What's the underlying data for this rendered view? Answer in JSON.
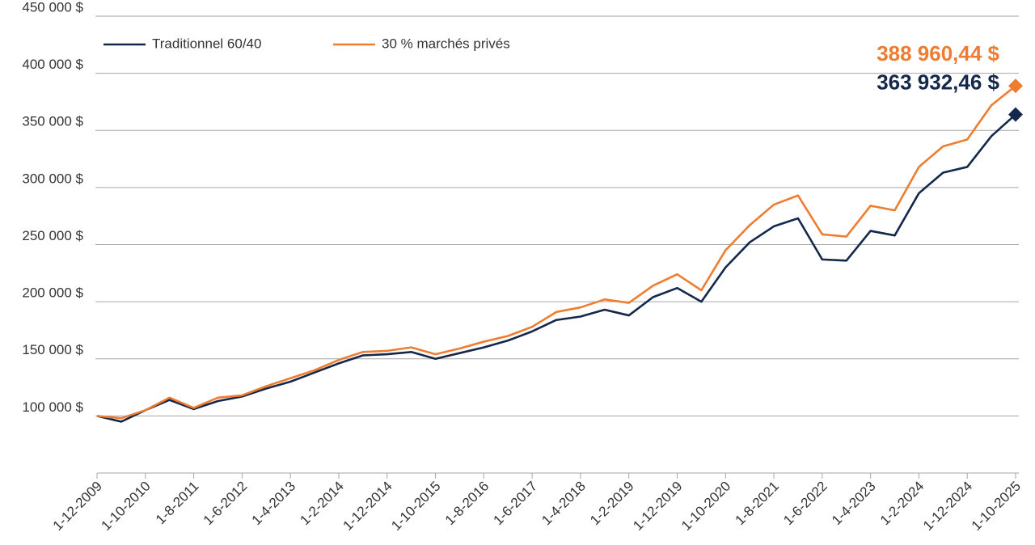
{
  "chart_data": {
    "type": "line",
    "categories": [
      "1-12-2009",
      null,
      "1-10-2010",
      null,
      "1-8-2011",
      null,
      "1-6-2012",
      null,
      "1-4-2013",
      null,
      "1-2-2014",
      null,
      "1-12-2014",
      null,
      "1-10-2015",
      null,
      "1-8-2016",
      null,
      "1-6-2017",
      null,
      "1-4-2018",
      null,
      "1-2-2019",
      null,
      "1-12-2019",
      null,
      "1-10-2020",
      null,
      "1-8-2021",
      null,
      "1-6-2022",
      null,
      "1-4-2023",
      null,
      "1-2-2024",
      null,
      "1-12-2024",
      null,
      "1-10-2025"
    ],
    "series": [
      {
        "name": "Traditionnel 60/40",
        "color": "#14284b",
        "values": [
          100000,
          95000,
          105000,
          114000,
          106000,
          113000,
          117000,
          124000,
          130000,
          138000,
          146000,
          153000,
          154000,
          156000,
          150000,
          155000,
          160000,
          166000,
          174000,
          184000,
          187000,
          193000,
          188000,
          204000,
          212000,
          200000,
          230000,
          252000,
          266000,
          273000,
          237000,
          236000,
          262000,
          258000,
          295000,
          313000,
          318000,
          345000,
          363932.46
        ],
        "value_labels": [
          null,
          null,
          null,
          null,
          null,
          null,
          null,
          null,
          null,
          null,
          null,
          null,
          null,
          null,
          null,
          null,
          null,
          null,
          null,
          null,
          null,
          null,
          null,
          null,
          null,
          null,
          null,
          null,
          null,
          null,
          null,
          null,
          null,
          null,
          null,
          null,
          null,
          null,
          "363 932,46 $"
        ]
      },
      {
        "name": "30 % marchés privés",
        "color": "#ee7d31",
        "values": [
          100000,
          98000,
          105000,
          116000,
          107000,
          116000,
          118000,
          126000,
          133000,
          140000,
          149000,
          156000,
          157000,
          160000,
          154000,
          159000,
          165000,
          170000,
          178000,
          191000,
          195000,
          202000,
          199000,
          214000,
          224000,
          210000,
          245000,
          267000,
          285000,
          293000,
          259000,
          257000,
          284000,
          280000,
          318000,
          336000,
          342000,
          372000,
          388960.44
        ],
        "value_labels": [
          null,
          null,
          null,
          null,
          null,
          null,
          null,
          null,
          null,
          null,
          null,
          null,
          null,
          null,
          null,
          null,
          null,
          null,
          null,
          null,
          null,
          null,
          null,
          null,
          null,
          null,
          null,
          null,
          null,
          null,
          null,
          null,
          null,
          null,
          null,
          null,
          null,
          null,
          "388 960,44 $"
        ]
      }
    ],
    "ylim": [
      50000,
      450000
    ],
    "yticks": [
      {
        "value": 100000,
        "label": "100 000 $"
      },
      {
        "value": 150000,
        "label": "150 000 $"
      },
      {
        "value": 200000,
        "label": "200 000 $"
      },
      {
        "value": 250000,
        "label": "250 000 $"
      },
      {
        "value": 300000,
        "label": "300 000 $"
      },
      {
        "value": 350000,
        "label": "350 000 $"
      },
      {
        "value": 400000,
        "label": "400 000 $"
      },
      {
        "value": 450000,
        "label": "450 000 $"
      }
    ],
    "grid": true,
    "legend": "top-left"
  }
}
